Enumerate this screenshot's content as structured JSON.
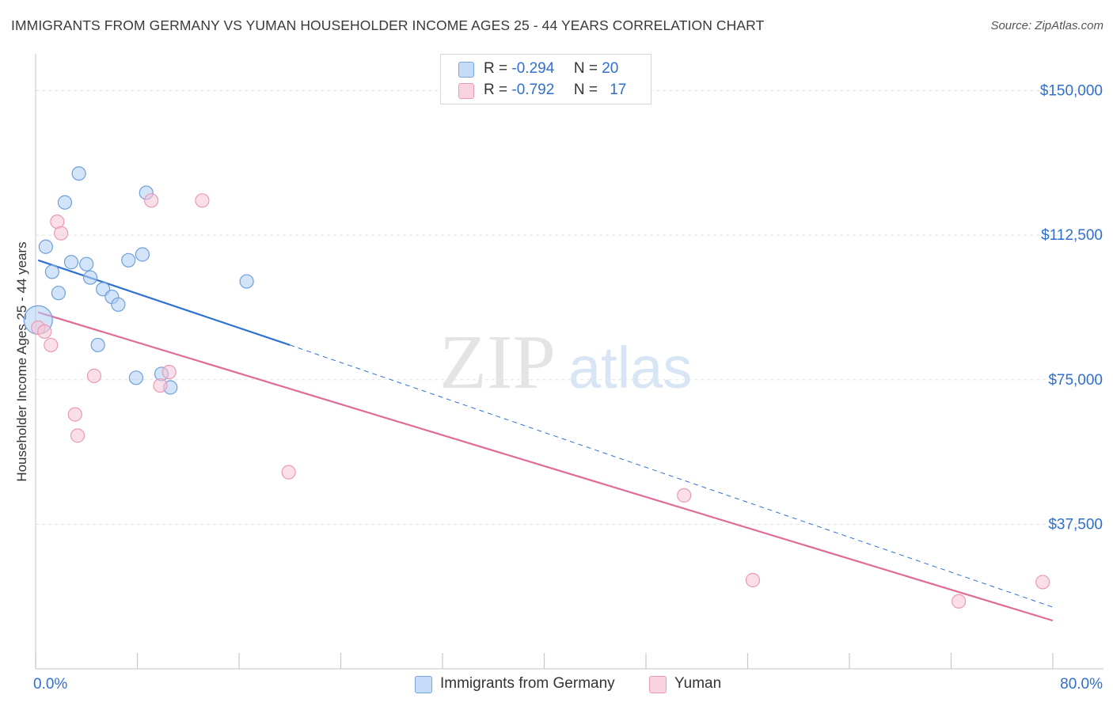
{
  "header": {
    "title": "IMMIGRANTS FROM GERMANY VS YUMAN HOUSEHOLDER INCOME AGES 25 - 44 YEARS CORRELATION CHART",
    "source": "Source: ZipAtlas.com"
  },
  "watermark": {
    "zip": "ZIP",
    "atlas": "atlas"
  },
  "legend": {
    "rows": [
      {
        "r_label": "R =",
        "r_value": "-0.294",
        "n_label": "N =",
        "n_value": "20",
        "color": "#aecdf2",
        "stroke": "#7aa6dd"
      },
      {
        "r_label": "R =",
        "r_value": "-0.792",
        "n_label": "N =",
        "n_value": "17",
        "color": "#f8c5d6",
        "stroke": "#e99ab6"
      }
    ]
  },
  "bottom_legend": {
    "items": [
      {
        "label": "Immigrants from Germany",
        "color": "#c4dcf7",
        "stroke": "#7aa6dd"
      },
      {
        "label": "Yuman",
        "color": "#fad3e0",
        "stroke": "#e99ab6"
      }
    ]
  },
  "chart_data": {
    "type": "scatter",
    "title": "IMMIGRANTS FROM GERMANY VS YUMAN HOUSEHOLDER INCOME AGES 25 - 44 YEARS CORRELATION CHART",
    "xlabel": "",
    "ylabel": "Householder Income Ages 25 - 44 years",
    "xlim": [
      0,
      80
    ],
    "ylim": [
      0,
      157500
    ],
    "x_tick_labels": [
      "0.0%",
      "80.0%"
    ],
    "y_ticks": [
      37500,
      75000,
      112500,
      150000
    ],
    "y_tick_labels": [
      "$37,500",
      "$75,000",
      "$112,500",
      "$150,000"
    ],
    "grid": true,
    "legend_position": "top-center",
    "series": [
      {
        "name": "Immigrants from Germany",
        "color": "#aecdf2",
        "stroke": "#6d9fdb",
        "line_color": "#2f72d0",
        "points": [
          {
            "x": 0.2,
            "y": 90500,
            "big": true
          },
          {
            "x": 0.8,
            "y": 109500
          },
          {
            "x": 1.3,
            "y": 103000
          },
          {
            "x": 1.8,
            "y": 97500
          },
          {
            "x": 2.3,
            "y": 121000
          },
          {
            "x": 2.8,
            "y": 105500
          },
          {
            "x": 3.4,
            "y": 128500
          },
          {
            "x": 4.0,
            "y": 105000
          },
          {
            "x": 4.3,
            "y": 101500
          },
          {
            "x": 4.9,
            "y": 84000
          },
          {
            "x": 5.3,
            "y": 98500
          },
          {
            "x": 6.0,
            "y": 96500
          },
          {
            "x": 6.5,
            "y": 94500
          },
          {
            "x": 7.3,
            "y": 106000
          },
          {
            "x": 7.9,
            "y": 75500
          },
          {
            "x": 8.4,
            "y": 107500
          },
          {
            "x": 8.7,
            "y": 123500
          },
          {
            "x": 9.9,
            "y": 76500
          },
          {
            "x": 10.6,
            "y": 73000
          },
          {
            "x": 16.6,
            "y": 100500
          }
        ],
        "trend": {
          "x1": 0.2,
          "y1": 106000,
          "x2": 20.0,
          "y2": 84000,
          "dash_to_x": 80.0,
          "dash_to_y": 16000
        }
      },
      {
        "name": "Yuman",
        "color": "#f8c5d6",
        "stroke": "#e99ab6",
        "line_color": "#e06b98",
        "points": [
          {
            "x": 0.2,
            "y": 88500
          },
          {
            "x": 0.7,
            "y": 87500
          },
          {
            "x": 1.2,
            "y": 84000
          },
          {
            "x": 1.7,
            "y": 116000
          },
          {
            "x": 2.0,
            "y": 113000
          },
          {
            "x": 3.1,
            "y": 66000
          },
          {
            "x": 3.3,
            "y": 60500
          },
          {
            "x": 4.6,
            "y": 76000
          },
          {
            "x": 9.1,
            "y": 121500
          },
          {
            "x": 9.8,
            "y": 73500
          },
          {
            "x": 10.5,
            "y": 77000
          },
          {
            "x": 13.1,
            "y": 121500
          },
          {
            "x": 19.9,
            "y": 51000
          },
          {
            "x": 51.0,
            "y": 45000
          },
          {
            "x": 56.4,
            "y": 23000
          },
          {
            "x": 72.6,
            "y": 17500
          },
          {
            "x": 79.2,
            "y": 22500
          }
        ],
        "trend": {
          "x1": 0.2,
          "y1": 92500,
          "x2": 80.0,
          "y2": 12500
        }
      }
    ]
  }
}
